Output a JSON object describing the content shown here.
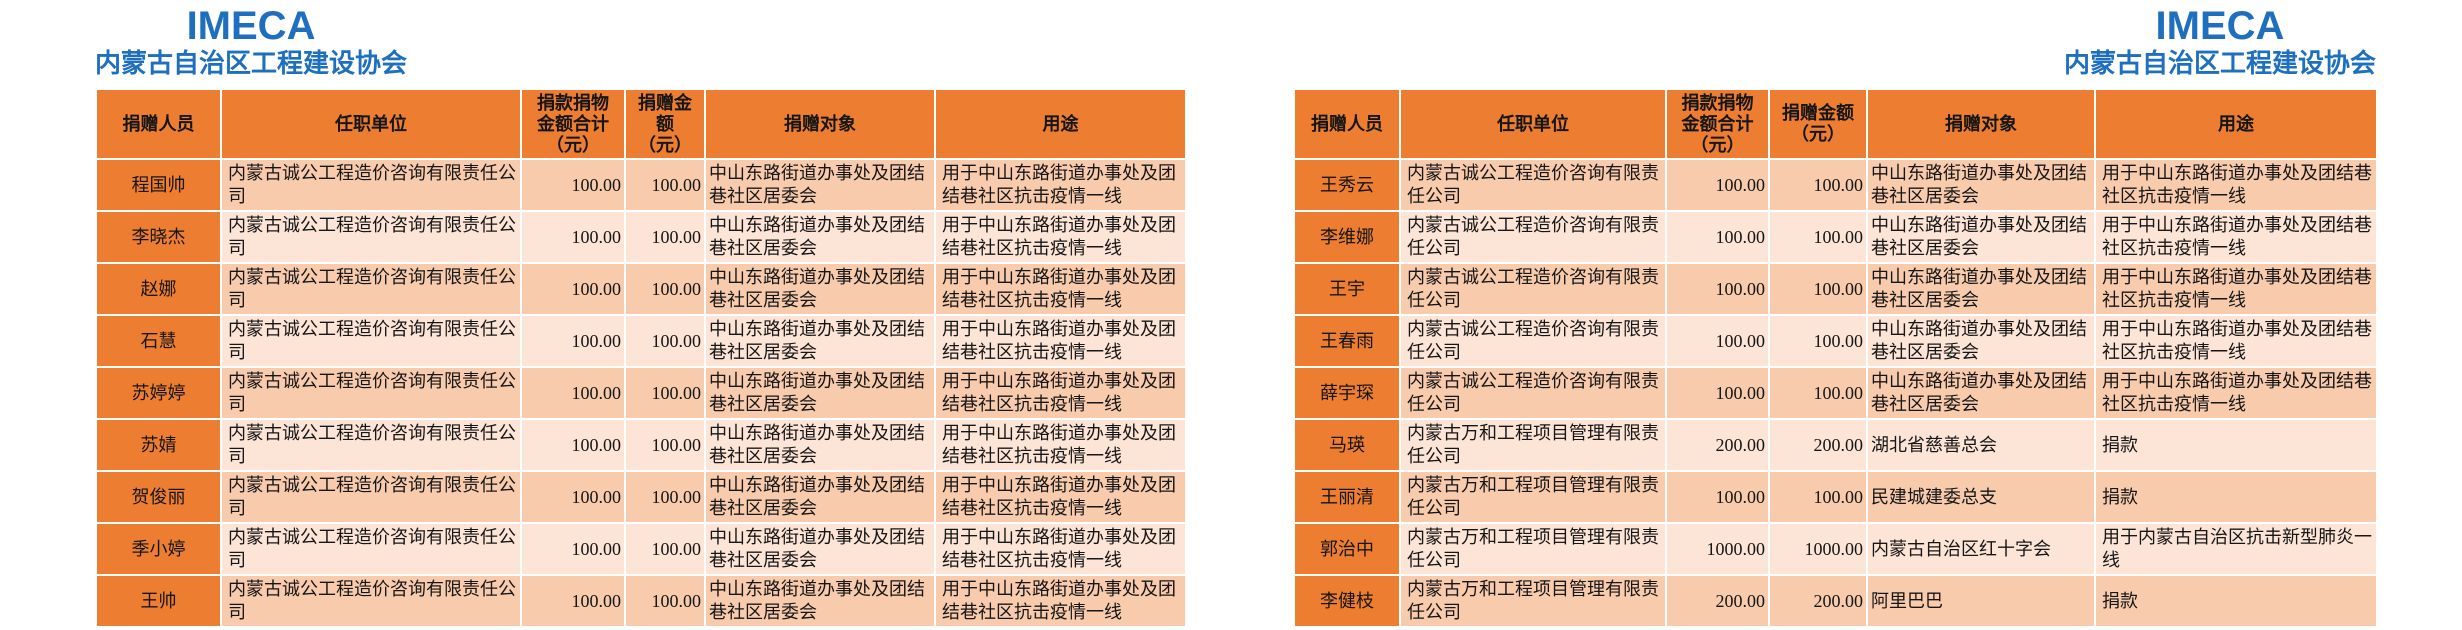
{
  "colors": {
    "header_orange": "#ED7D31",
    "band_dark": "#F8CBAD",
    "band_light": "#FCE4D6",
    "brand_blue": "#1E6FBE"
  },
  "left": {
    "brand": {
      "logo": "IMECA",
      "org": "内蒙古自治区工程建设协会"
    },
    "table": {
      "columns": [
        "捐赠人员",
        "任职单位",
        "捐款捐物金额合计\n（元）",
        "捐赠金额\n（元）",
        "捐赠对象",
        "用途"
      ],
      "rows": [
        {
          "name": "程国帅",
          "employer": "内蒙古诚公工程造价咨询有限责任公司",
          "total": "100.00",
          "amount": "100.00",
          "recipient": "中山东路街道办事处及团结巷社区居委会",
          "purpose": "用于中山东路街道办事处及团结巷社区抗击疫情一线"
        },
        {
          "name": "李晓杰",
          "employer": "内蒙古诚公工程造价咨询有限责任公司",
          "total": "100.00",
          "amount": "100.00",
          "recipient": "中山东路街道办事处及团结巷社区居委会",
          "purpose": "用于中山东路街道办事处及团结巷社区抗击疫情一线"
        },
        {
          "name": "赵娜",
          "employer": "内蒙古诚公工程造价咨询有限责任公司",
          "total": "100.00",
          "amount": "100.00",
          "recipient": "中山东路街道办事处及团结巷社区居委会",
          "purpose": "用于中山东路街道办事处及团结巷社区抗击疫情一线"
        },
        {
          "name": "石慧",
          "employer": "内蒙古诚公工程造价咨询有限责任公司",
          "total": "100.00",
          "amount": "100.00",
          "recipient": "中山东路街道办事处及团结巷社区居委会",
          "purpose": "用于中山东路街道办事处及团结巷社区抗击疫情一线"
        },
        {
          "name": "苏婷婷",
          "employer": "内蒙古诚公工程造价咨询有限责任公司",
          "total": "100.00",
          "amount": "100.00",
          "recipient": "中山东路街道办事处及团结巷社区居委会",
          "purpose": "用于中山东路街道办事处及团结巷社区抗击疫情一线"
        },
        {
          "name": "苏婧",
          "employer": "内蒙古诚公工程造价咨询有限责任公司",
          "total": "100.00",
          "amount": "100.00",
          "recipient": "中山东路街道办事处及团结巷社区居委会",
          "purpose": "用于中山东路街道办事处及团结巷社区抗击疫情一线"
        },
        {
          "name": "贺俊丽",
          "employer": "内蒙古诚公工程造价咨询有限责任公司",
          "total": "100.00",
          "amount": "100.00",
          "recipient": "中山东路街道办事处及团结巷社区居委会",
          "purpose": "用于中山东路街道办事处及团结巷社区抗击疫情一线"
        },
        {
          "name": "季小婷",
          "employer": "内蒙古诚公工程造价咨询有限责任公司",
          "total": "100.00",
          "amount": "100.00",
          "recipient": "中山东路街道办事处及团结巷社区居委会",
          "purpose": "用于中山东路街道办事处及团结巷社区抗击疫情一线"
        },
        {
          "name": "王帅",
          "employer": "内蒙古诚公工程造价咨询有限责任公司",
          "total": "100.00",
          "amount": "100.00",
          "recipient": "中山东路街道办事处及团结巷社区居委会",
          "purpose": "用于中山东路街道办事处及团结巷社区抗击疫情一线"
        }
      ]
    }
  },
  "right": {
    "brand": {
      "logo": "IMECA",
      "org": "内蒙古自治区工程建设协会"
    },
    "table": {
      "columns": [
        "捐赠人员",
        "任职单位",
        "捐款捐物金额合计\n（元）",
        "捐赠金额\n（元）",
        "捐赠对象",
        "用途"
      ],
      "rows": [
        {
          "name": "王秀云",
          "employer": "内蒙古诚公工程造价咨询有限责任公司",
          "total": "100.00",
          "amount": "100.00",
          "recipient": "中山东路街道办事处及团结巷社区居委会",
          "purpose": "用于中山东路街道办事处及团结巷社区抗击疫情一线"
        },
        {
          "name": "李维娜",
          "employer": "内蒙古诚公工程造价咨询有限责任公司",
          "total": "100.00",
          "amount": "100.00",
          "recipient": "中山东路街道办事处及团结巷社区居委会",
          "purpose": "用于中山东路街道办事处及团结巷社区抗击疫情一线"
        },
        {
          "name": "王宇",
          "employer": "内蒙古诚公工程造价咨询有限责任公司",
          "total": "100.00",
          "amount": "100.00",
          "recipient": "中山东路街道办事处及团结巷社区居委会",
          "purpose": "用于中山东路街道办事处及团结巷社区抗击疫情一线"
        },
        {
          "name": "王春雨",
          "employer": "内蒙古诚公工程造价咨询有限责任公司",
          "total": "100.00",
          "amount": "100.00",
          "recipient": "中山东路街道办事处及团结巷社区居委会",
          "purpose": "用于中山东路街道办事处及团结巷社区抗击疫情一线"
        },
        {
          "name": "薛宇琛",
          "employer": "内蒙古诚公工程造价咨询有限责任公司",
          "total": "100.00",
          "amount": "100.00",
          "recipient": "中山东路街道办事处及团结巷社区居委会",
          "purpose": "用于中山东路街道办事处及团结巷社区抗击疫情一线"
        },
        {
          "name": "马瑛",
          "employer": "内蒙古万和工程项目管理有限责任公司",
          "total": "200.00",
          "amount": "200.00",
          "recipient": "湖北省慈善总会",
          "purpose": "捐款"
        },
        {
          "name": "王丽清",
          "employer": "内蒙古万和工程项目管理有限责任公司",
          "total": "100.00",
          "amount": "100.00",
          "recipient": "民建城建委总支",
          "purpose": "捐款"
        },
        {
          "name": "郭治中",
          "employer": "内蒙古万和工程项目管理有限责任公司",
          "total": "1000.00",
          "amount": "1000.00",
          "recipient": "内蒙古自治区红十字会",
          "purpose": "用于内蒙古自治区抗击新型肺炎一线"
        },
        {
          "name": "李健枝",
          "employer": "内蒙古万和工程项目管理有限责任公司",
          "total": "200.00",
          "amount": "200.00",
          "recipient": "阿里巴巴",
          "purpose": "捐款"
        }
      ]
    }
  }
}
